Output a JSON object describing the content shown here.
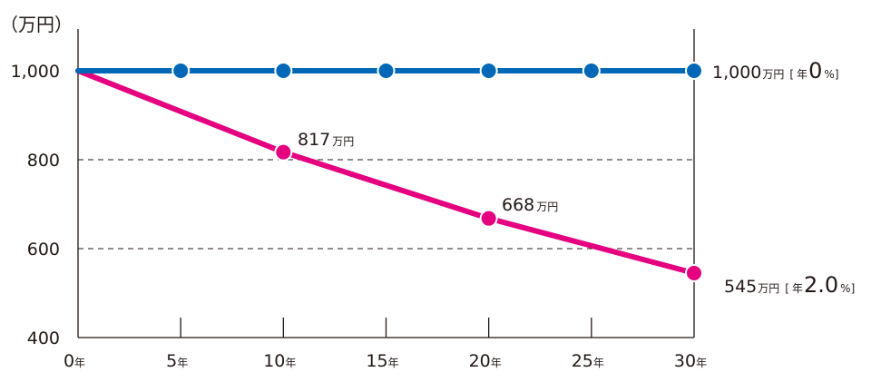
{
  "chart_data": {
    "type": "line",
    "ylabel": "（万円）",
    "x": [
      0,
      5,
      10,
      15,
      20,
      25,
      30
    ],
    "x_tick_labels": [
      "0",
      "5",
      "10",
      "15",
      "20",
      "25",
      "30"
    ],
    "x_tick_suffix": "年",
    "y_ticks": [
      400,
      600,
      800,
      1000
    ],
    "y_tick_labels": [
      "400",
      "600",
      "800",
      "1,000"
    ],
    "ylim": [
      400,
      1000
    ],
    "xlim": [
      0,
      30
    ],
    "grid": "dashed horizontal at 600 and 800",
    "series": [
      {
        "color": "#0068b7",
        "points": [
          [
            0,
            1000
          ],
          [
            5,
            1000
          ],
          [
            10,
            1000
          ],
          [
            15,
            1000
          ],
          [
            20,
            1000
          ],
          [
            25,
            1000
          ],
          [
            30,
            1000
          ]
        ],
        "markers_at": [
          5,
          10,
          15,
          20,
          25,
          30
        ]
      },
      {
        "color": "#e4007f",
        "points": [
          [
            0,
            1000
          ],
          [
            10,
            817
          ],
          [
            20,
            668
          ],
          [
            30,
            545
          ]
        ],
        "markers_at": [
          10,
          20,
          30
        ]
      }
    ],
    "annotations": [
      {
        "value": "817",
        "unit": "万円"
      },
      {
        "value": "668",
        "unit": "万円"
      },
      {
        "value": "1,000",
        "unit": "万円",
        "bracket_open": "[",
        "rate_prefix": "年",
        "rate": "0",
        "rate_unit": "%",
        "bracket_close": "]"
      },
      {
        "value": "545",
        "unit": "万円",
        "bracket_open": "[",
        "rate_prefix": "年",
        "rate": "2.0",
        "rate_unit": "%",
        "bracket_close": "]"
      }
    ]
  }
}
